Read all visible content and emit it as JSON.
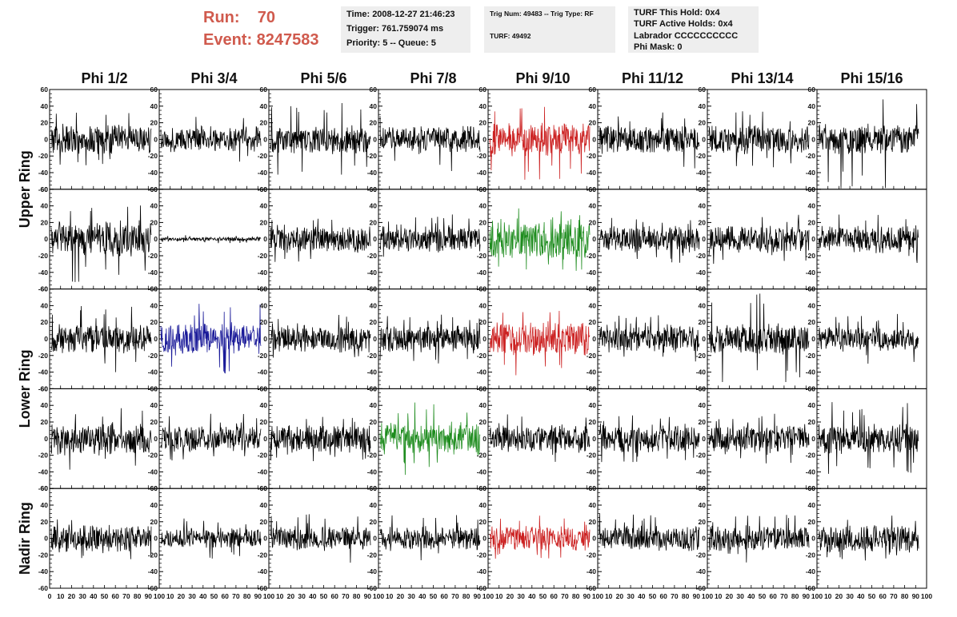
{
  "header": {
    "run_label": "Run:    70",
    "event_label": "Event: 8247583",
    "time": "Time: 2008-12-27 21:46:23",
    "trigger": "Trigger: 761.759074 ms",
    "priority": "Priority: 5 -- Queue: 5",
    "trig_num": "Trig Num: 49483 -- Trig Type: RF",
    "turf": "TURF: 49492",
    "turf_this_hold": "TURF This Hold: 0x4",
    "turf_active_holds": "TURF Active Holds: 0x4",
    "labrador": "Labrador CCCCCCCCCC",
    "phi_mask": "Phi Mask: 0"
  },
  "columns": [
    "Phi 1/2",
    "Phi 3/4",
    "Phi 5/6",
    "Phi 7/8",
    "Phi 9/10",
    "Phi 11/12",
    "Phi 13/14",
    "Phi 15/16"
  ],
  "ring_labels": [
    "Upper Ring",
    "Lower Ring",
    "Nadir Ring"
  ],
  "colors": {
    "default_trace": "#000000",
    "red_trace": "#cc2222",
    "green_trace": "#1e8c1e",
    "blue_trace": "#1a1a99",
    "title_red": "#d05a4d"
  },
  "chart_data": {
    "type": "line",
    "rows": 5,
    "cols": 8,
    "ylim": [
      -60,
      60
    ],
    "xlim": [
      0,
      100
    ],
    "y_ticks": [
      "60",
      "40",
      "20",
      "0",
      "-20",
      "-40",
      "-60"
    ],
    "x_ticks": [
      "0",
      "10",
      "20",
      "30",
      "40",
      "50",
      "60",
      "70",
      "80",
      "90",
      "100"
    ],
    "samples": 260,
    "panels": [
      {
        "row": 0,
        "col": 0,
        "color": "default",
        "amplitude": 15,
        "spike_max": 35
      },
      {
        "row": 0,
        "col": 1,
        "color": "default",
        "amplitude": 13,
        "spike_max": 30
      },
      {
        "row": 0,
        "col": 2,
        "color": "default",
        "amplitude": 14,
        "spike_max": 45
      },
      {
        "row": 0,
        "col": 3,
        "color": "default",
        "amplitude": 14,
        "spike_max": 40
      },
      {
        "row": 0,
        "col": 4,
        "color": "red",
        "amplitude": 17,
        "spike_max": 50
      },
      {
        "row": 0,
        "col": 5,
        "color": "default",
        "amplitude": 14,
        "spike_max": 35
      },
      {
        "row": 0,
        "col": 6,
        "color": "default",
        "amplitude": 14,
        "spike_max": 35
      },
      {
        "row": 0,
        "col": 7,
        "color": "default",
        "amplitude": 15,
        "spike_max": 62
      },
      {
        "row": 1,
        "col": 0,
        "color": "default",
        "amplitude": 18,
        "spike_max": 55
      },
      {
        "row": 1,
        "col": 1,
        "color": "default",
        "amplitude": 2,
        "spike_max": 5
      },
      {
        "row": 1,
        "col": 2,
        "color": "default",
        "amplitude": 14,
        "spike_max": 30
      },
      {
        "row": 1,
        "col": 3,
        "color": "default",
        "amplitude": 14,
        "spike_max": 30
      },
      {
        "row": 1,
        "col": 4,
        "color": "green",
        "amplitude": 20,
        "spike_max": 40
      },
      {
        "row": 1,
        "col": 5,
        "color": "default",
        "amplitude": 13,
        "spike_max": 30
      },
      {
        "row": 1,
        "col": 6,
        "color": "default",
        "amplitude": 14,
        "spike_max": 30
      },
      {
        "row": 1,
        "col": 7,
        "color": "default",
        "amplitude": 14,
        "spike_max": 30
      },
      {
        "row": 2,
        "col": 0,
        "color": "default",
        "amplitude": 15,
        "spike_max": 40
      },
      {
        "row": 2,
        "col": 1,
        "color": "blue",
        "amplitude": 16,
        "spike_max": 45
      },
      {
        "row": 2,
        "col": 2,
        "color": "default",
        "amplitude": 14,
        "spike_max": 30
      },
      {
        "row": 2,
        "col": 3,
        "color": "default",
        "amplitude": 14,
        "spike_max": 30
      },
      {
        "row": 2,
        "col": 4,
        "color": "red",
        "amplitude": 17,
        "spike_max": 50
      },
      {
        "row": 2,
        "col": 5,
        "color": "default",
        "amplitude": 14,
        "spike_max": 30
      },
      {
        "row": 2,
        "col": 6,
        "color": "default",
        "amplitude": 15,
        "spike_max": 60
      },
      {
        "row": 2,
        "col": 7,
        "color": "default",
        "amplitude": 12,
        "spike_max": 30
      },
      {
        "row": 3,
        "col": 0,
        "color": "default",
        "amplitude": 16,
        "spike_max": 40
      },
      {
        "row": 3,
        "col": 1,
        "color": "default",
        "amplitude": 13,
        "spike_max": 30
      },
      {
        "row": 3,
        "col": 2,
        "color": "default",
        "amplitude": 14,
        "spike_max": 30
      },
      {
        "row": 3,
        "col": 3,
        "color": "green",
        "amplitude": 17,
        "spike_max": 45
      },
      {
        "row": 3,
        "col": 4,
        "color": "default",
        "amplitude": 14,
        "spike_max": 30
      },
      {
        "row": 3,
        "col": 5,
        "color": "default",
        "amplitude": 14,
        "spike_max": 30
      },
      {
        "row": 3,
        "col": 6,
        "color": "default",
        "amplitude": 14,
        "spike_max": 30
      },
      {
        "row": 3,
        "col": 7,
        "color": "default",
        "amplitude": 15,
        "spike_max": 45
      },
      {
        "row": 4,
        "col": 0,
        "color": "default",
        "amplitude": 14,
        "spike_max": 35
      },
      {
        "row": 4,
        "col": 1,
        "color": "default",
        "amplitude": 10,
        "spike_max": 25
      },
      {
        "row": 4,
        "col": 2,
        "color": "default",
        "amplitude": 12,
        "spike_max": 30
      },
      {
        "row": 4,
        "col": 3,
        "color": "default",
        "amplitude": 12,
        "spike_max": 30
      },
      {
        "row": 4,
        "col": 4,
        "color": "red",
        "amplitude": 13,
        "spike_max": 30
      },
      {
        "row": 4,
        "col": 5,
        "color": "default",
        "amplitude": 13,
        "spike_max": 30
      },
      {
        "row": 4,
        "col": 6,
        "color": "default",
        "amplitude": 13,
        "spike_max": 30
      },
      {
        "row": 4,
        "col": 7,
        "color": "default",
        "amplitude": 14,
        "spike_max": 30
      }
    ]
  }
}
